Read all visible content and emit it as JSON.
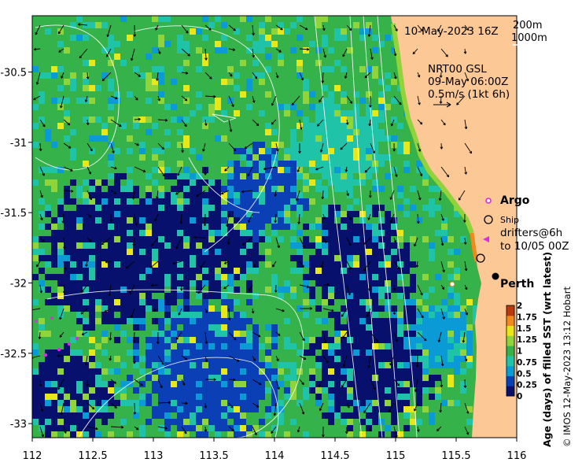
{
  "map": {
    "title": "10-May-2023 16Z",
    "contours": [
      "200m",
      "1000m"
    ],
    "current_source": {
      "product": "NRT00 GSL",
      "time": "09-May 06:00Z",
      "scale": "0.5m/s (1kt 6h)"
    },
    "place": "Perth",
    "legend": {
      "argo": "Argo",
      "ship": "Ship",
      "drifters_line1": "drifters@6h",
      "drifters_line2": "to 10/05 00Z"
    },
    "colorbar": {
      "label": "Age (days) of filled SST (wrt latest)",
      "ticks": [
        "0",
        "0.25",
        "0.5",
        "0.75",
        "1",
        "1.25",
        "1.5",
        "1.75",
        "2"
      ],
      "colors": [
        "#08106e",
        "#0a3fb5",
        "#0a9ad6",
        "#1fc4a8",
        "#36b24a",
        "#8fd43a",
        "#e8e818",
        "#f08a1a",
        "#b83a0a"
      ]
    },
    "credit": "© IMOS 12-May-2023 13:12 Hobart",
    "x_ticks": [
      "112",
      "112.5",
      "113",
      "113.5",
      "114",
      "114.5",
      "115",
      "115.5",
      "116"
    ],
    "y_ticks": [
      "-30.5",
      "-31",
      "-31.5",
      "-32",
      "-32.5",
      "-33"
    ],
    "x_range": [
      112,
      116
    ],
    "y_range": [
      -33.1,
      -30.1
    ],
    "colors": {
      "land": "#fbc896",
      "ocean_base": "#2aa85a",
      "deep": "#0a1c8a"
    }
  }
}
